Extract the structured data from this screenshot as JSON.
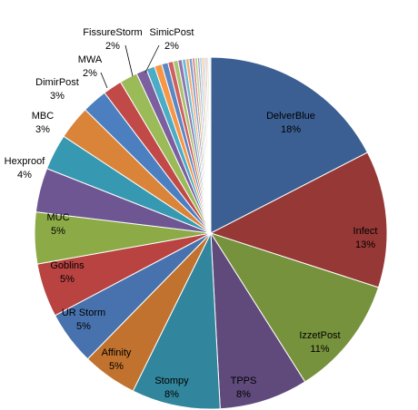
{
  "chart_data": {
    "type": "pie",
    "slices": [
      {
        "name": "DelverBlue",
        "pct_label": "18%",
        "value": 18.0,
        "color": "#3b5f92"
      },
      {
        "name": "Infect",
        "pct_label": "13%",
        "value": 13.0,
        "color": "#953836"
      },
      {
        "name": "IzzetPost",
        "pct_label": "11%",
        "value": 11.4,
        "color": "#77923c"
      },
      {
        "name": "TPPS",
        "pct_label": "8%",
        "value": 8.4,
        "color": "#5f4a7b"
      },
      {
        "name": "Stompy",
        "pct_label": "8%",
        "value": 8.4,
        "color": "#31859c"
      },
      {
        "name": "Affinity",
        "pct_label": "5%",
        "value": 5.2,
        "color": "#c0722e"
      },
      {
        "name": "UR Storm",
        "pct_label": "5%",
        "value": 5.1,
        "color": "#4872ad"
      },
      {
        "name": "Goblins",
        "pct_label": "5%",
        "value": 5.1,
        "color": "#b84341"
      },
      {
        "name": "MUC",
        "pct_label": "5%",
        "value": 4.9,
        "color": "#8cab47"
      },
      {
        "name": "Hexproof",
        "pct_label": "4%",
        "value": 4.2,
        "color": "#6e5692"
      },
      {
        "name": "MBC",
        "pct_label": "3%",
        "value": 3.4,
        "color": "#3799b1"
      },
      {
        "name": "DimirPost",
        "pct_label": "3%",
        "value": 3.2,
        "color": "#da843a"
      },
      {
        "name": "MWA",
        "pct_label": "2%",
        "value": 2.4,
        "color": "#4c7fc0"
      },
      {
        "name": "FissureStorm",
        "pct_label": "2%",
        "value": 1.8,
        "color": "#c14a48"
      },
      {
        "name": "SimicPost",
        "pct_label": "2%",
        "value": 1.7,
        "color": "#9bbb59"
      },
      {
        "name": "",
        "pct_label": "",
        "value": 1.0,
        "color": "#7c5f9e"
      },
      {
        "name": "",
        "pct_label": "",
        "value": 0.8,
        "color": "#4bacc6"
      },
      {
        "name": "",
        "pct_label": "",
        "value": 0.7,
        "color": "#f79646"
      },
      {
        "name": "",
        "pct_label": "",
        "value": 0.6,
        "color": "#5a87c5"
      },
      {
        "name": "",
        "pct_label": "",
        "value": 0.5,
        "color": "#d0605e"
      },
      {
        "name": "",
        "pct_label": "",
        "value": 0.45,
        "color": "#a9c46f"
      },
      {
        "name": "",
        "pct_label": "",
        "value": 0.4,
        "color": "#8e76b0"
      },
      {
        "name": "",
        "pct_label": "",
        "value": 0.35,
        "color": "#6dbdd3"
      },
      {
        "name": "",
        "pct_label": "",
        "value": 0.3,
        "color": "#f9a868"
      },
      {
        "name": "",
        "pct_label": "",
        "value": 0.3,
        "color": "#7b9fd3"
      },
      {
        "name": "",
        "pct_label": "",
        "value": 0.25,
        "color": "#d98684"
      },
      {
        "name": "",
        "pct_label": "",
        "value": 0.25,
        "color": "#bcd38c"
      },
      {
        "name": "",
        "pct_label": "",
        "value": 0.2,
        "color": "#a896c4"
      },
      {
        "name": "",
        "pct_label": "",
        "value": 0.2,
        "color": "#8fcde0"
      },
      {
        "name": "",
        "pct_label": "",
        "value": 0.2,
        "color": "#fbbd8c"
      },
      {
        "name": "",
        "pct_label": "",
        "value": 0.15,
        "color": "#9cb6de"
      },
      {
        "name": "",
        "pct_label": "",
        "value": 0.15,
        "color": "#e2a6a5"
      },
      {
        "name": "",
        "pct_label": "",
        "value": 0.15,
        "color": "#cfe0ae"
      },
      {
        "name": "",
        "pct_label": "",
        "value": 0.1,
        "color": "#c3b7d8"
      },
      {
        "name": "",
        "pct_label": "",
        "value": 0.1,
        "color": "#b2dded"
      }
    ],
    "title": "",
    "legend": "none",
    "start": "top, clockwise"
  }
}
